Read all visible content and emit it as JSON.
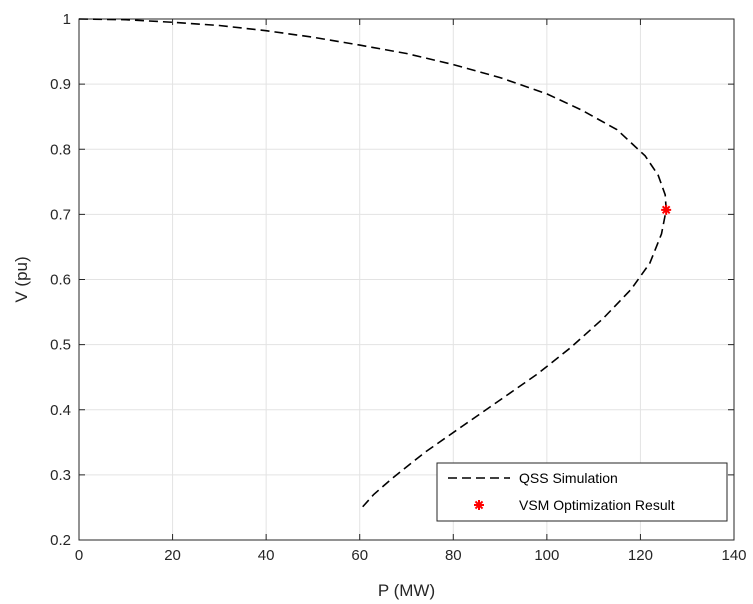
{
  "chart_data": {
    "type": "line",
    "xlabel": "P (MW)",
    "ylabel": "V (pu)",
    "xlim": [
      0,
      140
    ],
    "ylim": [
      0.2,
      1
    ],
    "xticks": [
      0,
      20,
      40,
      60,
      80,
      100,
      120,
      140
    ],
    "yticks": [
      0.2,
      0.3,
      0.4,
      0.5,
      0.6,
      0.7,
      0.8,
      0.9,
      1
    ],
    "grid": true,
    "legend_position": "bottom-right",
    "series": [
      {
        "name": "QSS Simulation",
        "style": "dashed",
        "color": "#000000",
        "points": [
          [
            0,
            1.0
          ],
          [
            10,
            0.999
          ],
          [
            20,
            0.995
          ],
          [
            30,
            0.99
          ],
          [
            40,
            0.982
          ],
          [
            50,
            0.972
          ],
          [
            60,
            0.96
          ],
          [
            70,
            0.947
          ],
          [
            80,
            0.93
          ],
          [
            90,
            0.91
          ],
          [
            100,
            0.885
          ],
          [
            107.5,
            0.86
          ],
          [
            115,
            0.83
          ],
          [
            121,
            0.79
          ],
          [
            123.8,
            0.76
          ],
          [
            125.3,
            0.73
          ],
          [
            125.5,
            0.707
          ],
          [
            124.5,
            0.67
          ],
          [
            122,
            0.625
          ],
          [
            118,
            0.585
          ],
          [
            112,
            0.54
          ],
          [
            105,
            0.495
          ],
          [
            98,
            0.455
          ],
          [
            90,
            0.415
          ],
          [
            82,
            0.375
          ],
          [
            74,
            0.335
          ],
          [
            67,
            0.295
          ],
          [
            63,
            0.27
          ],
          [
            60.5,
            0.25
          ]
        ]
      },
      {
        "name": "VSM Optimization Result",
        "style": "marker-star",
        "color": "#ff0000",
        "points": [
          [
            125.5,
            0.707
          ]
        ]
      }
    ]
  }
}
